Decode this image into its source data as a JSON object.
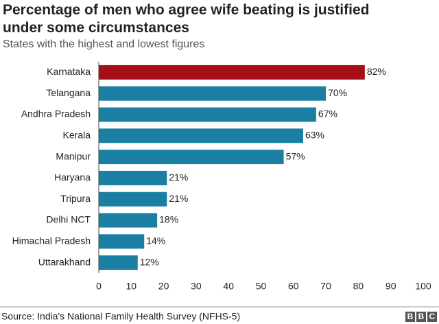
{
  "chart_data": {
    "type": "hbar",
    "title": "Percentage of men who agree wife beating is justified under some circumstances",
    "subtitle": "States with the highest and lowest figures",
    "categories": [
      "Karnataka",
      "Telangana",
      "Andhra Pradesh",
      "Kerala",
      "Manipur",
      "Haryana",
      "Tripura",
      "Delhi NCT",
      "Himachal Pradesh",
      "Uttarakhand"
    ],
    "values": [
      82,
      70,
      67,
      63,
      57,
      21,
      21,
      18,
      14,
      12
    ],
    "value_labels": [
      "82%",
      "70%",
      "67%",
      "63%",
      "57%",
      "21%",
      "21%",
      "18%",
      "14%",
      "12%"
    ],
    "colors": [
      "#a50f15",
      "#1a7fa3",
      "#1a7fa3",
      "#1a7fa3",
      "#1a7fa3",
      "#1a7fa3",
      "#1a7fa3",
      "#1a7fa3",
      "#1a7fa3",
      "#1a7fa3"
    ],
    "xlim": [
      0,
      100
    ],
    "xticks": [
      0,
      10,
      20,
      30,
      40,
      50,
      60,
      70,
      80,
      90,
      100
    ],
    "source": "Source: India's National Family Health Survey (NFHS-5)",
    "logo": [
      "B",
      "B",
      "C"
    ]
  }
}
